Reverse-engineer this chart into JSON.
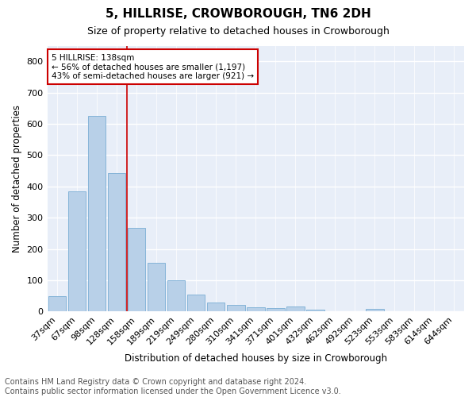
{
  "title": "5, HILLRISE, CROWBOROUGH, TN6 2DH",
  "subtitle": "Size of property relative to detached houses in Crowborough",
  "xlabel": "Distribution of detached houses by size in Crowborough",
  "ylabel": "Number of detached properties",
  "categories": [
    "37sqm",
    "67sqm",
    "98sqm",
    "128sqm",
    "158sqm",
    "189sqm",
    "219sqm",
    "249sqm",
    "280sqm",
    "310sqm",
    "341sqm",
    "371sqm",
    "401sqm",
    "432sqm",
    "462sqm",
    "492sqm",
    "523sqm",
    "553sqm",
    "583sqm",
    "614sqm",
    "644sqm"
  ],
  "values": [
    48,
    385,
    625,
    443,
    268,
    155,
    100,
    53,
    28,
    20,
    13,
    12,
    15,
    7,
    0,
    0,
    9,
    0,
    0,
    0,
    0
  ],
  "bar_color": "#b8d0e8",
  "bar_edge_color": "#7aadd4",
  "bg_color": "#e8eef8",
  "grid_color": "#ffffff",
  "vline_color": "#cc0000",
  "vline_x": 3.5,
  "annotation_text": "5 HILLRISE: 138sqm\n← 56% of detached houses are smaller (1,197)\n43% of semi-detached houses are larger (921) →",
  "annotation_box_color": "#ffffff",
  "annotation_box_edge": "#cc0000",
  "footnote": "Contains HM Land Registry data © Crown copyright and database right 2024.\nContains public sector information licensed under the Open Government Licence v3.0.",
  "ylim": [
    0,
    850
  ],
  "yticks": [
    0,
    100,
    200,
    300,
    400,
    500,
    600,
    700,
    800
  ],
  "title_fontsize": 11,
  "subtitle_fontsize": 9,
  "footnote_fontsize": 7
}
